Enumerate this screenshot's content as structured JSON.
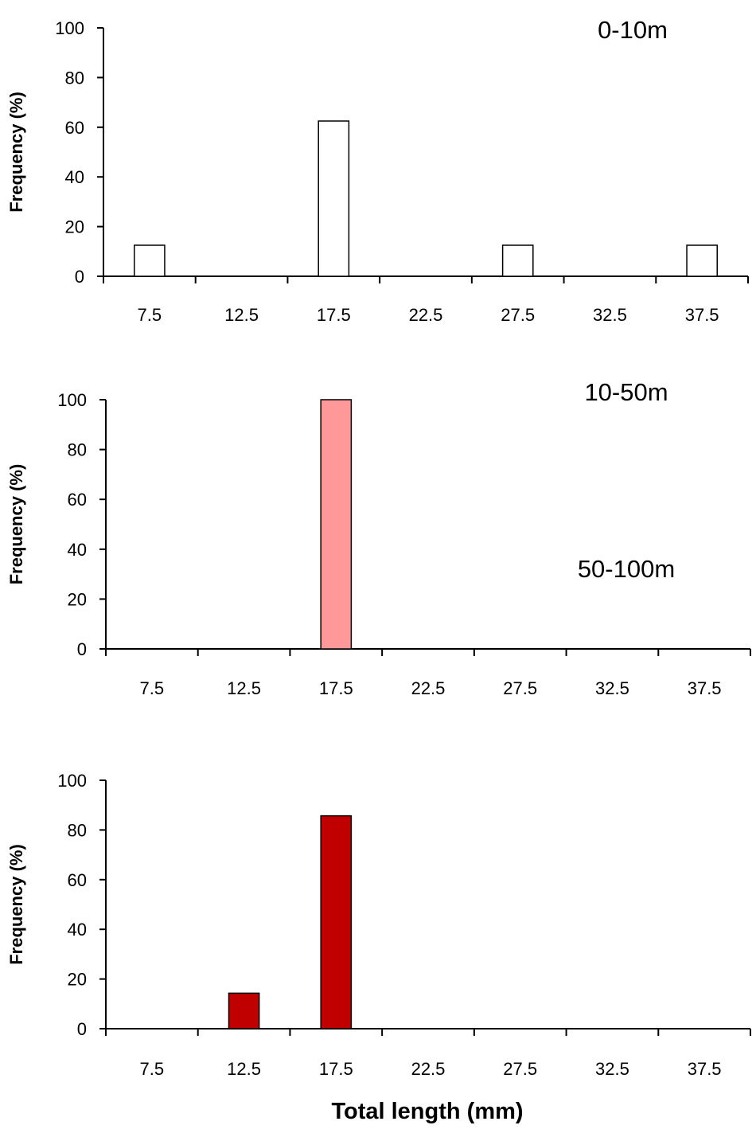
{
  "xlabel": "Total length  (mm)",
  "chart_data": [
    {
      "type": "bar",
      "title": "0-10m",
      "ylabel": "Frequency (%)",
      "xlabel": "",
      "ylim": [
        0,
        100
      ],
      "yticks": [
        "0",
        "20",
        "40",
        "60",
        "80",
        "100"
      ],
      "categories": [
        "7.5",
        "12.5",
        "17.5",
        "22.5",
        "27.5",
        "32.5",
        "37.5"
      ],
      "values": [
        12.5,
        0,
        62.5,
        0,
        12.5,
        0,
        12.5
      ],
      "color": "#ffffff",
      "grid": false
    },
    {
      "type": "bar",
      "title": "10-50m",
      "ylabel": "Frequency (%)",
      "xlabel": "",
      "ylim": [
        0,
        100
      ],
      "yticks": [
        "0",
        "20",
        "40",
        "60",
        "80",
        "100"
      ],
      "categories": [
        "7.5",
        "12.5",
        "17.5",
        "22.5",
        "27.5",
        "32.5",
        "37.5"
      ],
      "values": [
        0,
        0,
        100,
        0,
        0,
        0,
        0
      ],
      "color": "#ff9999",
      "grid": false
    },
    {
      "type": "bar",
      "title": "50-100m",
      "ylabel": "Frequency (%)",
      "xlabel": "",
      "ylim": [
        0,
        100
      ],
      "yticks": [
        "0",
        "20",
        "40",
        "60",
        "80",
        "100"
      ],
      "categories": [
        "7.5",
        "12.5",
        "17.5",
        "22.5",
        "27.5",
        "32.5",
        "37.5"
      ],
      "values": [
        0,
        14.3,
        85.7,
        0,
        0,
        0,
        0
      ],
      "color": "#c00000",
      "grid": false
    }
  ]
}
